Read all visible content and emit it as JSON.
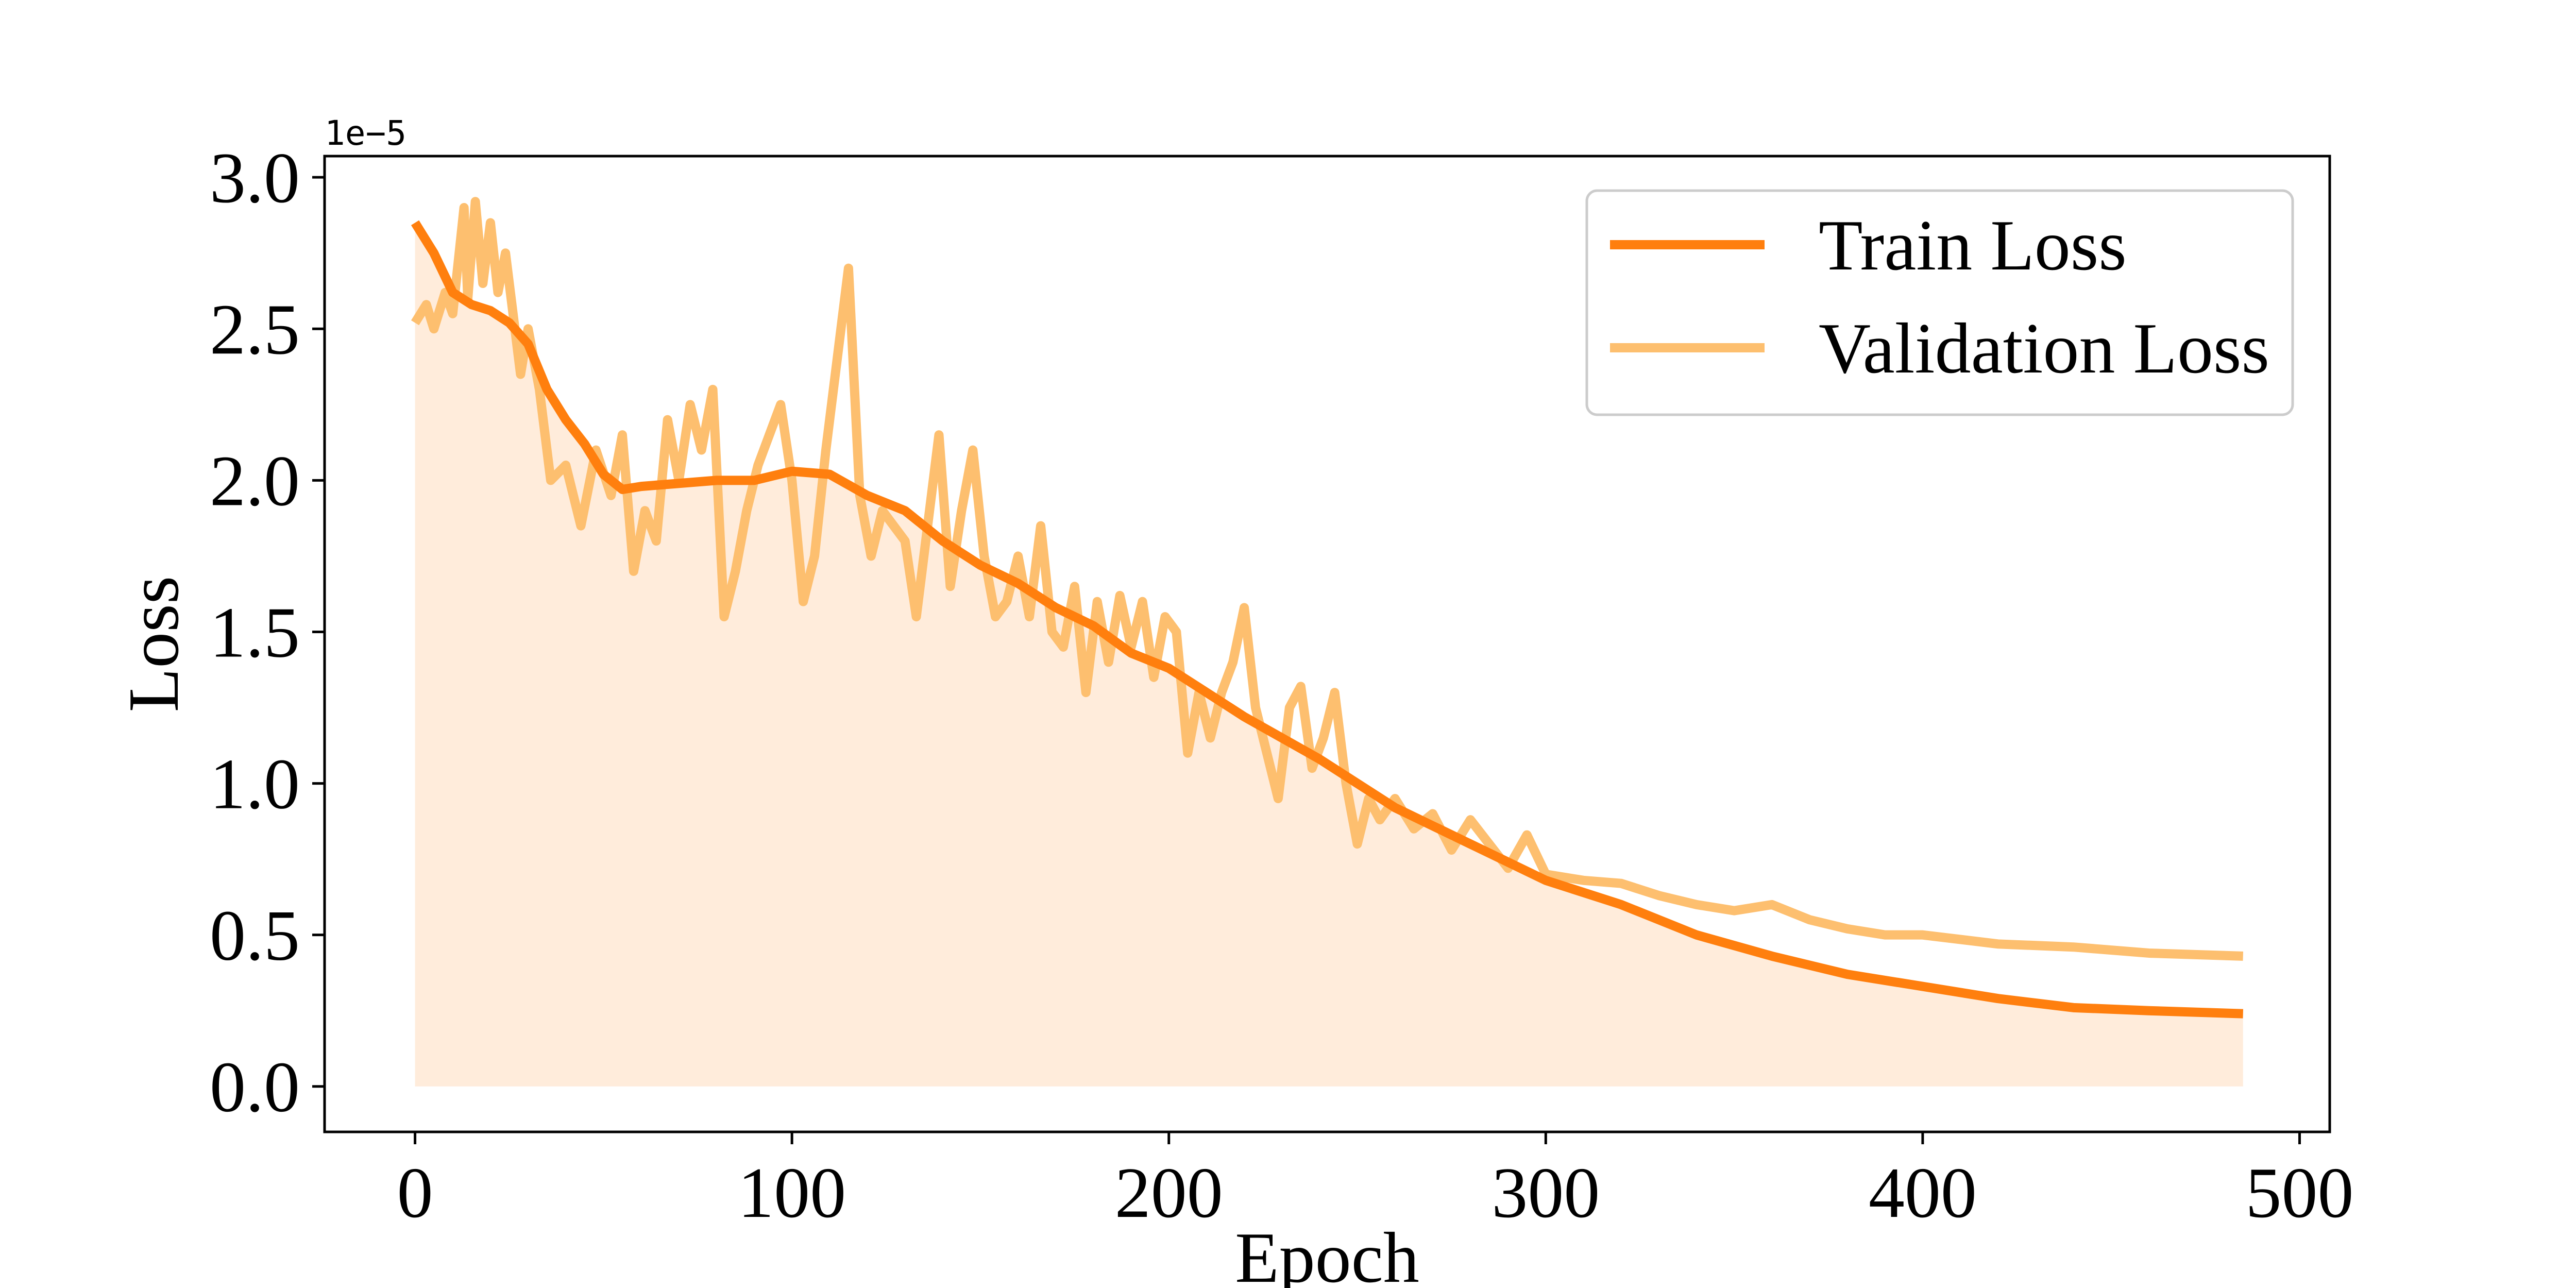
{
  "chart_data": {
    "type": "line",
    "title": "",
    "xlabel": "Epoch",
    "ylabel": "Loss",
    "y_offset_label": "1e−5",
    "xlim": [
      -24,
      508
    ],
    "ylim": [
      -0.15,
      3.07
    ],
    "x_ticks": [
      0,
      100,
      200,
      300,
      400,
      500
    ],
    "x_tick_labels": [
      "0",
      "100",
      "200",
      "300",
      "400",
      "500"
    ],
    "y_ticks": [
      0.0,
      0.5,
      1.0,
      1.5,
      2.0,
      2.5,
      3.0
    ],
    "y_tick_labels": [
      "0.0",
      "0.5",
      "1.0",
      "1.5",
      "2.0",
      "2.5",
      "3.0"
    ],
    "grid": false,
    "legend_position": "top-right",
    "fill_under": "Train Loss",
    "series": [
      {
        "name": "Train Loss",
        "color": "#ff7f0e",
        "x": [
          0,
          5,
          10,
          15,
          20,
          25,
          30,
          35,
          40,
          45,
          50,
          55,
          60,
          70,
          80,
          90,
          100,
          110,
          120,
          130,
          140,
          150,
          160,
          170,
          180,
          190,
          200,
          210,
          220,
          230,
          240,
          250,
          260,
          270,
          280,
          290,
          300,
          320,
          340,
          360,
          380,
          400,
          420,
          440,
          460,
          485
        ],
        "y": [
          2.85,
          2.75,
          2.62,
          2.58,
          2.56,
          2.52,
          2.45,
          2.3,
          2.2,
          2.12,
          2.02,
          1.97,
          1.98,
          1.99,
          2.0,
          2.0,
          2.03,
          2.02,
          1.95,
          1.9,
          1.8,
          1.72,
          1.66,
          1.58,
          1.52,
          1.43,
          1.38,
          1.3,
          1.22,
          1.15,
          1.08,
          1.0,
          0.92,
          0.86,
          0.8,
          0.74,
          0.68,
          0.6,
          0.5,
          0.43,
          0.37,
          0.33,
          0.29,
          0.26,
          0.25,
          0.24
        ]
      },
      {
        "name": "Validation Loss",
        "color": "#fdbf6f",
        "x": [
          0,
          3,
          5,
          8,
          10,
          13,
          14,
          16,
          18,
          20,
          22,
          24,
          26,
          28,
          30,
          33,
          36,
          40,
          44,
          48,
          52,
          55,
          58,
          61,
          64,
          67,
          70,
          73,
          76,
          79,
          82,
          85,
          88,
          91,
          94,
          97,
          100,
          103,
          106,
          109,
          112,
          115,
          118,
          121,
          124,
          127,
          130,
          133,
          136,
          139,
          142,
          145,
          148,
          151,
          154,
          157,
          160,
          163,
          166,
          169,
          172,
          175,
          178,
          181,
          184,
          187,
          190,
          193,
          196,
          199,
          202,
          205,
          208,
          211,
          214,
          217,
          220,
          223,
          226,
          229,
          232,
          235,
          238,
          241,
          244,
          247,
          250,
          253,
          256,
          260,
          265,
          270,
          275,
          280,
          285,
          290,
          295,
          300,
          310,
          320,
          330,
          340,
          350,
          360,
          370,
          380,
          390,
          400,
          420,
          440,
          460,
          485
        ],
        "y": [
          2.52,
          2.58,
          2.5,
          2.62,
          2.55,
          2.9,
          2.6,
          2.92,
          2.65,
          2.85,
          2.62,
          2.75,
          2.55,
          2.35,
          2.5,
          2.3,
          2.0,
          2.05,
          1.85,
          2.1,
          1.95,
          2.15,
          1.7,
          1.9,
          1.8,
          2.2,
          2.0,
          2.25,
          2.1,
          2.3,
          1.55,
          1.7,
          1.9,
          2.05,
          2.15,
          2.25,
          2.0,
          1.6,
          1.75,
          2.1,
          2.4,
          2.7,
          1.95,
          1.75,
          1.9,
          1.85,
          1.8,
          1.55,
          1.85,
          2.15,
          1.65,
          1.9,
          2.1,
          1.75,
          1.55,
          1.6,
          1.75,
          1.55,
          1.85,
          1.5,
          1.45,
          1.65,
          1.3,
          1.6,
          1.4,
          1.62,
          1.45,
          1.6,
          1.35,
          1.55,
          1.5,
          1.1,
          1.3,
          1.15,
          1.3,
          1.4,
          1.58,
          1.25,
          1.1,
          0.95,
          1.25,
          1.32,
          1.05,
          1.15,
          1.3,
          1.0,
          0.8,
          0.95,
          0.88,
          0.95,
          0.85,
          0.9,
          0.78,
          0.88,
          0.8,
          0.72,
          0.83,
          0.7,
          0.68,
          0.67,
          0.63,
          0.6,
          0.58,
          0.6,
          0.55,
          0.52,
          0.5,
          0.5,
          0.47,
          0.46,
          0.44,
          0.43
        ]
      }
    ]
  }
}
